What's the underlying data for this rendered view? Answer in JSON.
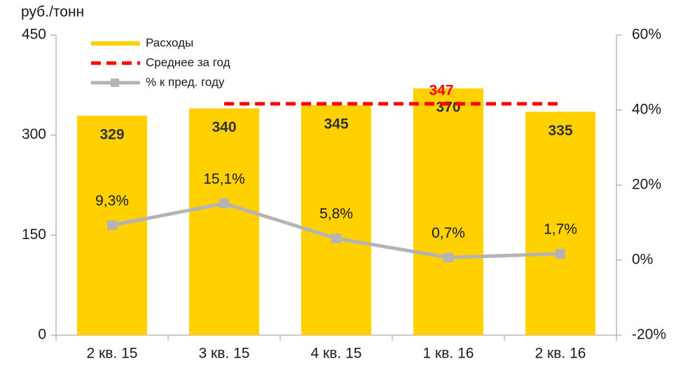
{
  "chart_data": {
    "type": "bar",
    "ylabel": "руб./тонн",
    "categories": [
      "2 кв. 15",
      "3 кв. 15",
      "4 кв. 15",
      "1 кв. 16",
      "2 кв. 16"
    ],
    "series": [
      {
        "name": "Расходы",
        "type": "bar",
        "color": "#ffd100",
        "values": [
          329,
          340,
          345,
          370,
          335
        ]
      },
      {
        "name": "% к пред. году",
        "type": "line",
        "axis": "y2",
        "color": "#b4b4b4",
        "values": [
          9.3,
          15.1,
          5.8,
          0.7,
          1.7
        ],
        "value_labels": [
          "9,3%",
          "15,1%",
          "5,8%",
          "0,7%",
          "1,7%"
        ]
      }
    ],
    "average": {
      "name": "Среднее за год",
      "value": 347,
      "color": "#ff0000"
    },
    "ylim": [
      0,
      450
    ],
    "yticks": [
      0,
      150,
      300,
      450
    ],
    "y2lim": [
      -20,
      60
    ],
    "y2ticks": [
      {
        "value": -20,
        "label": "-20%"
      },
      {
        "value": 0,
        "label": "0%"
      },
      {
        "value": 20,
        "label": "20%"
      },
      {
        "value": 40,
        "label": "40%"
      },
      {
        "value": 60,
        "label": "60%"
      }
    ]
  }
}
